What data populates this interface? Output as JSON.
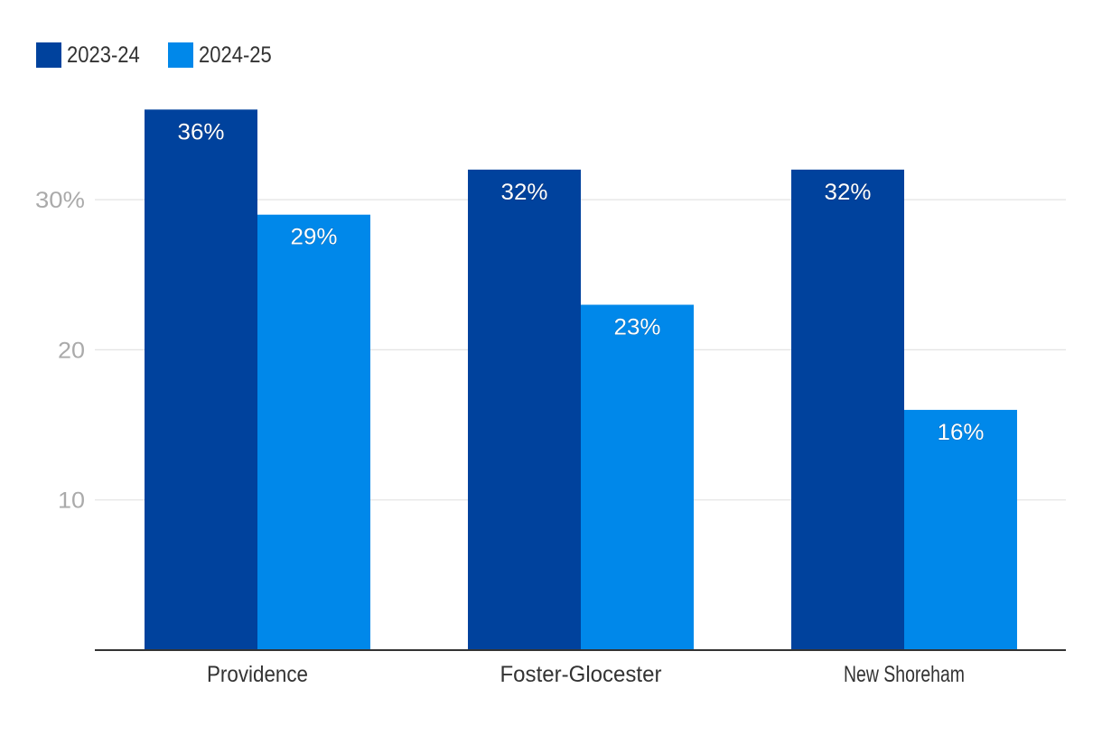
{
  "chart_data": {
    "type": "bar",
    "title": "",
    "xlabel": "",
    "ylabel": "",
    "categories": [
      "Providence",
      "Foster-Glocester",
      "New Shoreham"
    ],
    "series": [
      {
        "name": "2023-24",
        "values": [
          36,
          32,
          32
        ],
        "labels": [
          "36%",
          "32%",
          "32%"
        ],
        "color": "#00429d"
      },
      {
        "name": "2024-25",
        "values": [
          29,
          23,
          16
        ],
        "labels": [
          "29%",
          "23%",
          "16%"
        ],
        "color": "#0088ea"
      }
    ],
    "ylim": [
      0,
      36
    ],
    "yticks": [
      {
        "value": 10,
        "label": "10"
      },
      {
        "value": 20,
        "label": "20"
      },
      {
        "value": 30,
        "label": "30%"
      }
    ],
    "grid": true,
    "legend_position": "top-left"
  }
}
